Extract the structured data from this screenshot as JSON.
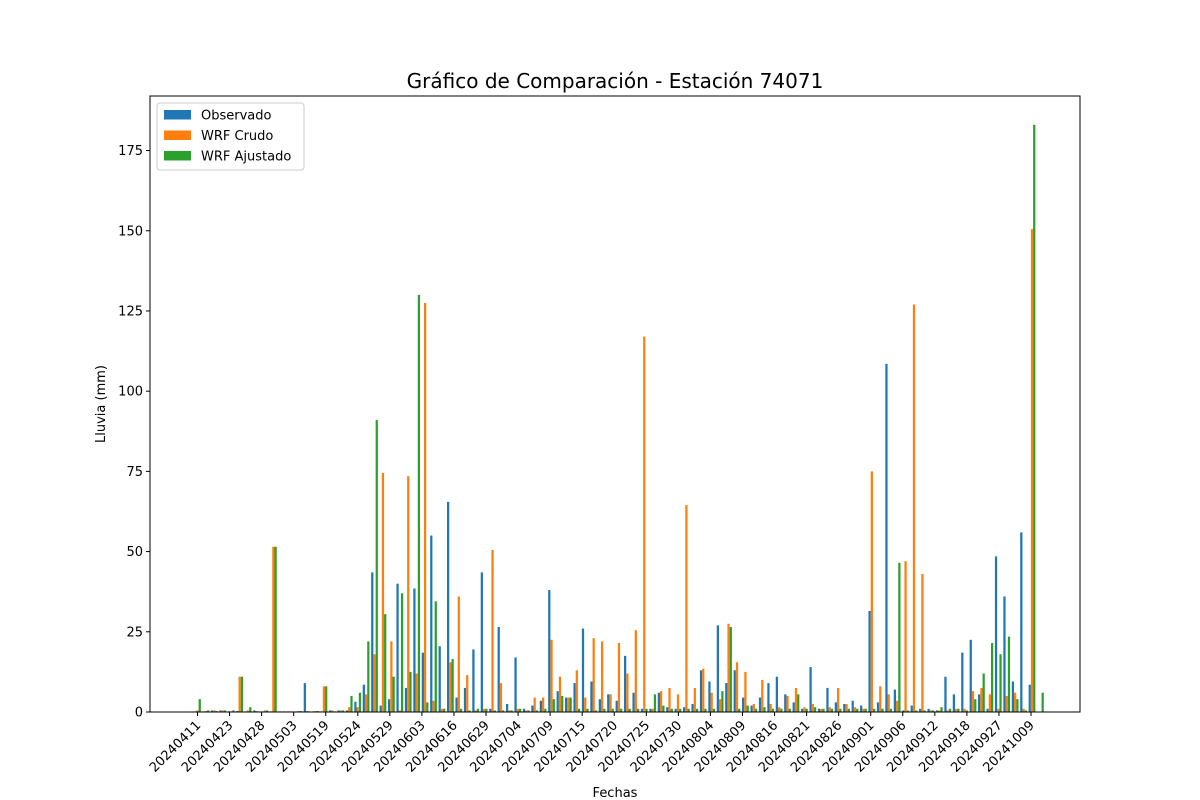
{
  "chart_data": {
    "type": "bar",
    "title": "Gráfico de Comparación - Estación 74071",
    "xlabel": "Fechas",
    "ylabel": "Lluvia (mm)",
    "ylim": [
      0,
      192
    ],
    "yticks": [
      0,
      25,
      50,
      75,
      100,
      125,
      150,
      175
    ],
    "legend_position": "top-left",
    "grid": false,
    "xtick_labels": [
      "20240411",
      "20240423",
      "20240428",
      "20240503",
      "20240519",
      "20240524",
      "20240529",
      "20240603",
      "20240616",
      "20240629",
      "20240704",
      "20240709",
      "20240715",
      "20240720",
      "20240725",
      "20240730",
      "20240804",
      "20240809",
      "20240816",
      "20240821",
      "20240826",
      "20240901",
      "20240906",
      "20240912",
      "20240918",
      "20240927",
      "20241009"
    ],
    "series": [
      {
        "name": "Observado",
        "color": "#1f77b4",
        "values": [
          0.2,
          0.2,
          0.5,
          0.5,
          0.2,
          0.3,
          0.2,
          0.5,
          0.2,
          0.2,
          0.2,
          0.2,
          0.2,
          9.0,
          0.2,
          0.2,
          0.5,
          0.5,
          0.5,
          3.2,
          8.5,
          43.5,
          2.0,
          4.0,
          40.0,
          7.5,
          38.5,
          18.5,
          55.0,
          20.5,
          65.5,
          4.5,
          7.5,
          19.5,
          43.5,
          1.0,
          26.5,
          2.5,
          17.0,
          1.0,
          2.0,
          3.5,
          38.0,
          6.5,
          4.5,
          9.0,
          26.0,
          9.5,
          4.0,
          5.5,
          3.5,
          17.5,
          6.0,
          1.0,
          1.0,
          6.0,
          1.5,
          1.0,
          1.5,
          2.5,
          13.0,
          9.5,
          27.0,
          9.0,
          13.0,
          4.5,
          2.0,
          4.5,
          9.0,
          11.0,
          5.5,
          3.0,
          1.0,
          14.0,
          1.0,
          7.5,
          3.0,
          2.5,
          3.5,
          2.0,
          31.5,
          3.0,
          108.5,
          7.0,
          0.5,
          2.0,
          1.0,
          1.0,
          0.5,
          11.0,
          5.5,
          18.5,
          22.5,
          5.5,
          1.0,
          48.5,
          36.0,
          9.5,
          56.0,
          8.5
        ],
        "values_note": ""
      },
      {
        "name": "WRF Crudo",
        "color": "#ff7f0e",
        "values": [
          0.5,
          0.3,
          0.5,
          0.5,
          0.2,
          11.0,
          0.5,
          0.3,
          0.5,
          51.5,
          0.2,
          0.2,
          0.3,
          0.3,
          0.3,
          8.0,
          0.5,
          0.5,
          1.5,
          1.5,
          5.5,
          18.0,
          74.5,
          22.0,
          0.5,
          73.5,
          12.0,
          127.5,
          3.5,
          1.0,
          15.5,
          36.0,
          11.5,
          0.5,
          1.0,
          50.5,
          9.0,
          0.5,
          1.0,
          0.5,
          4.5,
          4.5,
          22.5,
          11.0,
          4.5,
          13.0,
          4.5,
          23.0,
          22.0,
          5.5,
          21.5,
          12.0,
          25.5,
          117.0,
          1.0,
          6.5,
          7.5,
          5.5,
          64.5,
          7.5,
          13.5,
          6.0,
          4.0,
          27.5,
          15.5,
          12.5,
          2.5,
          10.0,
          2.5,
          1.5,
          5.0,
          7.5,
          1.5,
          2.5,
          1.0,
          1.5,
          7.5,
          2.5,
          1.5,
          1.0,
          75.0,
          8.0,
          5.5,
          3.5,
          47.0,
          127.0,
          43.0,
          0.5,
          0.5,
          0.5,
          1.0,
          1.0,
          6.5,
          7.5,
          5.5,
          1.0,
          5.0,
          6.0,
          1.0,
          150.5
        ],
        "values_note": ""
      },
      {
        "name": "WRF Ajustado",
        "color": "#2ca02c",
        "values": [
          4.0,
          0.5,
          0.3,
          0.5,
          0.5,
          11.0,
          1.5,
          0.2,
          0.5,
          51.5,
          0.2,
          0.2,
          0.3,
          0.2,
          0.3,
          8.0,
          0.2,
          0.5,
          5.0,
          6.0,
          22.0,
          91.0,
          30.5,
          11.0,
          37.0,
          12.5,
          130.0,
          3.0,
          34.5,
          1.0,
          16.5,
          1.0,
          0.5,
          1.0,
          1.0,
          0.5,
          0.5,
          0.5,
          1.0,
          0.5,
          0.5,
          1.0,
          4.0,
          5.0,
          4.5,
          1.0,
          1.0,
          0.5,
          1.0,
          1.0,
          1.0,
          1.0,
          1.0,
          1.0,
          5.5,
          2.0,
          1.0,
          1.0,
          1.0,
          1.0,
          1.0,
          1.0,
          6.5,
          26.5,
          1.0,
          2.0,
          1.0,
          1.5,
          1.0,
          1.0,
          1.0,
          5.5,
          1.0,
          1.5,
          1.0,
          1.0,
          1.0,
          1.0,
          1.0,
          1.0,
          1.0,
          1.0,
          1.0,
          46.5,
          0.5,
          0.5,
          0.5,
          0.5,
          1.5,
          1.0,
          1.0,
          0.5,
          4.0,
          12.0,
          21.5,
          18.0,
          23.5,
          4.0,
          0.5,
          183.0,
          6.0
        ],
        "values_note": ""
      }
    ]
  }
}
